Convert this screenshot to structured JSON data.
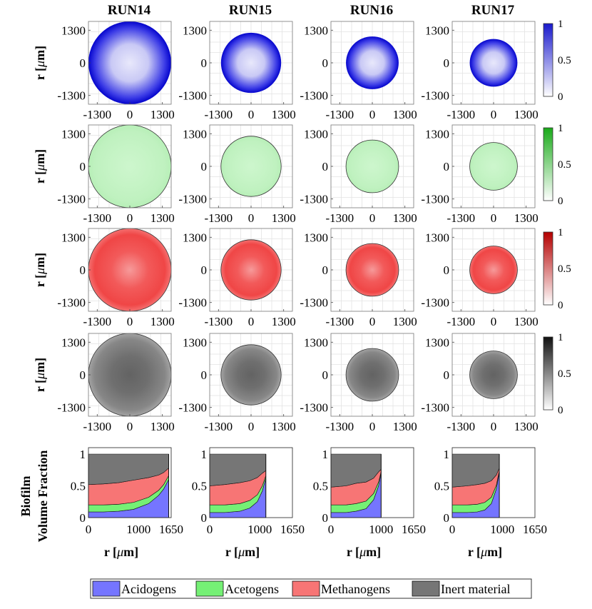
{
  "runs": [
    "RUN14",
    "RUN15",
    "RUN16",
    "RUN17"
  ],
  "map_axis": {
    "ylabel_prefix": "r [",
    "ylabel_mu": "μ",
    "ylabel_suffix": "m]",
    "ticks": [
      -1300,
      0,
      1300
    ],
    "tick_labels": [
      "-1300",
      "0",
      "1300"
    ],
    "range": [
      -1650,
      1650
    ]
  },
  "colorbars": [
    {
      "name": "acidogens",
      "color": "#1a1acc",
      "ticks": [
        "0",
        "0.5",
        "1"
      ]
    },
    {
      "name": "acetogens",
      "color": "#1aaa1a",
      "ticks": [
        "0",
        "0.5",
        "1"
      ]
    },
    {
      "name": "methanogens",
      "color": "#b40000",
      "ticks": [
        "0",
        "0.5",
        "1"
      ]
    },
    {
      "name": "inert",
      "color": "#111111",
      "ticks": [
        "0",
        "0.5",
        "1"
      ]
    }
  ],
  "maps": {
    "radius_um": [
      1650,
      1200,
      1050,
      950
    ],
    "colors": [
      "#2020e0",
      "#55dd55",
      "#ee3333",
      "#555555"
    ]
  },
  "profile_axis": {
    "ylabel_line1": "Biofilm",
    "ylabel_line2": "Volume Fraction",
    "xlabel_prefix": "r [",
    "xlabel_mu": "μ",
    "xlabel_suffix": "m]",
    "xticks": [
      0,
      1000,
      1650
    ],
    "xtick_labels": [
      "0",
      "1000",
      "1650"
    ],
    "yticks": [
      0,
      0.5,
      1
    ],
    "ytick_labels": [
      "0",
      "0.5",
      "1"
    ]
  },
  "chart_data": [
    {
      "type": "area",
      "title": "RUN14",
      "xlabel": "r [μm]",
      "ylabel": "Biofilm Volume Fraction",
      "xlim": [
        0,
        1650
      ],
      "ylim": [
        0,
        1
      ],
      "x": [
        0,
        300,
        600,
        900,
        1200,
        1400,
        1500,
        1600
      ],
      "series": [
        {
          "name": "Acidogens",
          "values": [
            0.09,
            0.09,
            0.1,
            0.13,
            0.22,
            0.35,
            0.45,
            0.6
          ]
        },
        {
          "name": "Acetogens",
          "values": [
            0.11,
            0.11,
            0.11,
            0.11,
            0.1,
            0.08,
            0.07,
            0.06
          ]
        },
        {
          "name": "Methanogens",
          "values": [
            0.32,
            0.33,
            0.34,
            0.35,
            0.31,
            0.24,
            0.19,
            0.12
          ]
        },
        {
          "name": "Inert material",
          "values": [
            0.48,
            0.47,
            0.45,
            0.41,
            0.37,
            0.33,
            0.29,
            0.22
          ]
        }
      ]
    },
    {
      "type": "area",
      "title": "RUN15",
      "xlabel": "r [μm]",
      "ylabel": "Biofilm Volume Fraction",
      "xlim": [
        0,
        1650
      ],
      "ylim": [
        0,
        1
      ],
      "x": [
        0,
        300,
        600,
        800,
        950,
        1050,
        1120
      ],
      "series": [
        {
          "name": "Acidogens",
          "values": [
            0.08,
            0.08,
            0.1,
            0.15,
            0.25,
            0.42,
            0.62
          ]
        },
        {
          "name": "Acetogens",
          "values": [
            0.12,
            0.12,
            0.12,
            0.12,
            0.11,
            0.08,
            0.04
          ]
        },
        {
          "name": "Methanogens",
          "values": [
            0.3,
            0.32,
            0.33,
            0.31,
            0.27,
            0.2,
            0.08
          ]
        },
        {
          "name": "Inert material",
          "values": [
            0.5,
            0.48,
            0.45,
            0.42,
            0.37,
            0.3,
            0.26
          ]
        }
      ]
    },
    {
      "type": "area",
      "title": "RUN16",
      "xlabel": "r [μm]",
      "ylabel": "Biofilm Volume Fraction",
      "xlim": [
        0,
        1650
      ],
      "ylim": [
        0,
        1
      ],
      "x": [
        0,
        300,
        500,
        700,
        850,
        950,
        1000
      ],
      "series": [
        {
          "name": "Acidogens",
          "values": [
            0.08,
            0.08,
            0.1,
            0.14,
            0.28,
            0.5,
            0.7
          ]
        },
        {
          "name": "Acetogens",
          "values": [
            0.12,
            0.12,
            0.12,
            0.12,
            0.1,
            0.06,
            0.02
          ]
        },
        {
          "name": "Methanogens",
          "values": [
            0.28,
            0.3,
            0.32,
            0.3,
            0.24,
            0.16,
            0.04
          ]
        },
        {
          "name": "Inert material",
          "values": [
            0.52,
            0.5,
            0.46,
            0.44,
            0.38,
            0.28,
            0.24
          ]
        }
      ]
    },
    {
      "type": "area",
      "title": "RUN17",
      "xlabel": "r [μm]",
      "ylabel": "Biofilm Volume Fraction",
      "xlim": [
        0,
        1650
      ],
      "ylim": [
        0,
        1
      ],
      "x": [
        0,
        300,
        500,
        650,
        780,
        880,
        940
      ],
      "series": [
        {
          "name": "Acidogens",
          "values": [
            0.08,
            0.08,
            0.09,
            0.12,
            0.22,
            0.45,
            0.72
          ]
        },
        {
          "name": "Acetogens",
          "values": [
            0.12,
            0.12,
            0.12,
            0.12,
            0.1,
            0.06,
            0.02
          ]
        },
        {
          "name": "Methanogens",
          "values": [
            0.28,
            0.3,
            0.31,
            0.3,
            0.26,
            0.16,
            0.04
          ]
        },
        {
          "name": "Inert material",
          "values": [
            0.52,
            0.5,
            0.48,
            0.46,
            0.42,
            0.33,
            0.22
          ]
        }
      ]
    }
  ],
  "legend": [
    {
      "label": "Acidogens",
      "color": "#7575ff"
    },
    {
      "label": "Acetogens",
      "color": "#75f075"
    },
    {
      "label": "Methanogens",
      "color": "#f77575"
    },
    {
      "label": "Inert material",
      "color": "#767676"
    }
  ]
}
